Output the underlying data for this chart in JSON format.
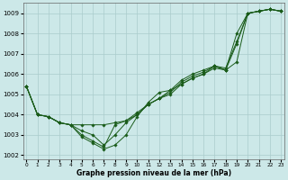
{
  "xlabel": "Graphe pression niveau de la mer (hPa)",
  "bg_color": "#cce8e8",
  "grid_color": "#aacccc",
  "line_color": "#1a5c1a",
  "marker_color": "#1a5c1a",
  "ylim": [
    1001.8,
    1009.5
  ],
  "xlim": [
    -0.3,
    23.3
  ],
  "yticks": [
    1002,
    1003,
    1004,
    1005,
    1006,
    1007,
    1008,
    1009
  ],
  "xticks": [
    0,
    1,
    2,
    3,
    4,
    5,
    6,
    7,
    8,
    9,
    10,
    11,
    12,
    13,
    14,
    15,
    16,
    17,
    18,
    19,
    20,
    21,
    22,
    23
  ],
  "series": [
    [
      1005.4,
      1004.0,
      1003.9,
      1003.6,
      1003.5,
      1003.5,
      1003.5,
      1003.5,
      1003.6,
      1003.7,
      1004.1,
      1004.5,
      1004.8,
      1005.0,
      1005.5,
      1005.8,
      1006.0,
      1006.3,
      1006.2,
      1006.6,
      1009.0,
      1009.1,
      1009.2,
      1009.1
    ],
    [
      1005.4,
      1004.0,
      1003.9,
      1003.6,
      1003.5,
      1003.2,
      1003.0,
      1002.5,
      1003.0,
      1003.6,
      1004.0,
      1004.5,
      1004.8,
      1005.2,
      1005.5,
      1005.8,
      1006.0,
      1006.4,
      1006.2,
      1007.5,
      1009.0,
      1009.1,
      1009.2,
      1009.1
    ],
    [
      1005.4,
      1004.0,
      1003.9,
      1003.6,
      1003.5,
      1003.0,
      1002.7,
      1002.4,
      1003.5,
      1003.7,
      1004.0,
      1004.5,
      1004.8,
      1005.1,
      1005.6,
      1005.9,
      1006.1,
      1006.4,
      1006.2,
      1008.0,
      1009.0,
      1009.1,
      1009.2,
      1009.1
    ],
    [
      1005.4,
      1004.0,
      1003.9,
      1003.6,
      1003.5,
      1002.9,
      1002.6,
      1002.3,
      1002.5,
      1003.0,
      1003.9,
      1004.6,
      1005.1,
      1005.2,
      1005.7,
      1006.0,
      1006.2,
      1006.4,
      1006.3,
      1007.6,
      1009.0,
      1009.1,
      1009.2,
      1009.1
    ]
  ]
}
